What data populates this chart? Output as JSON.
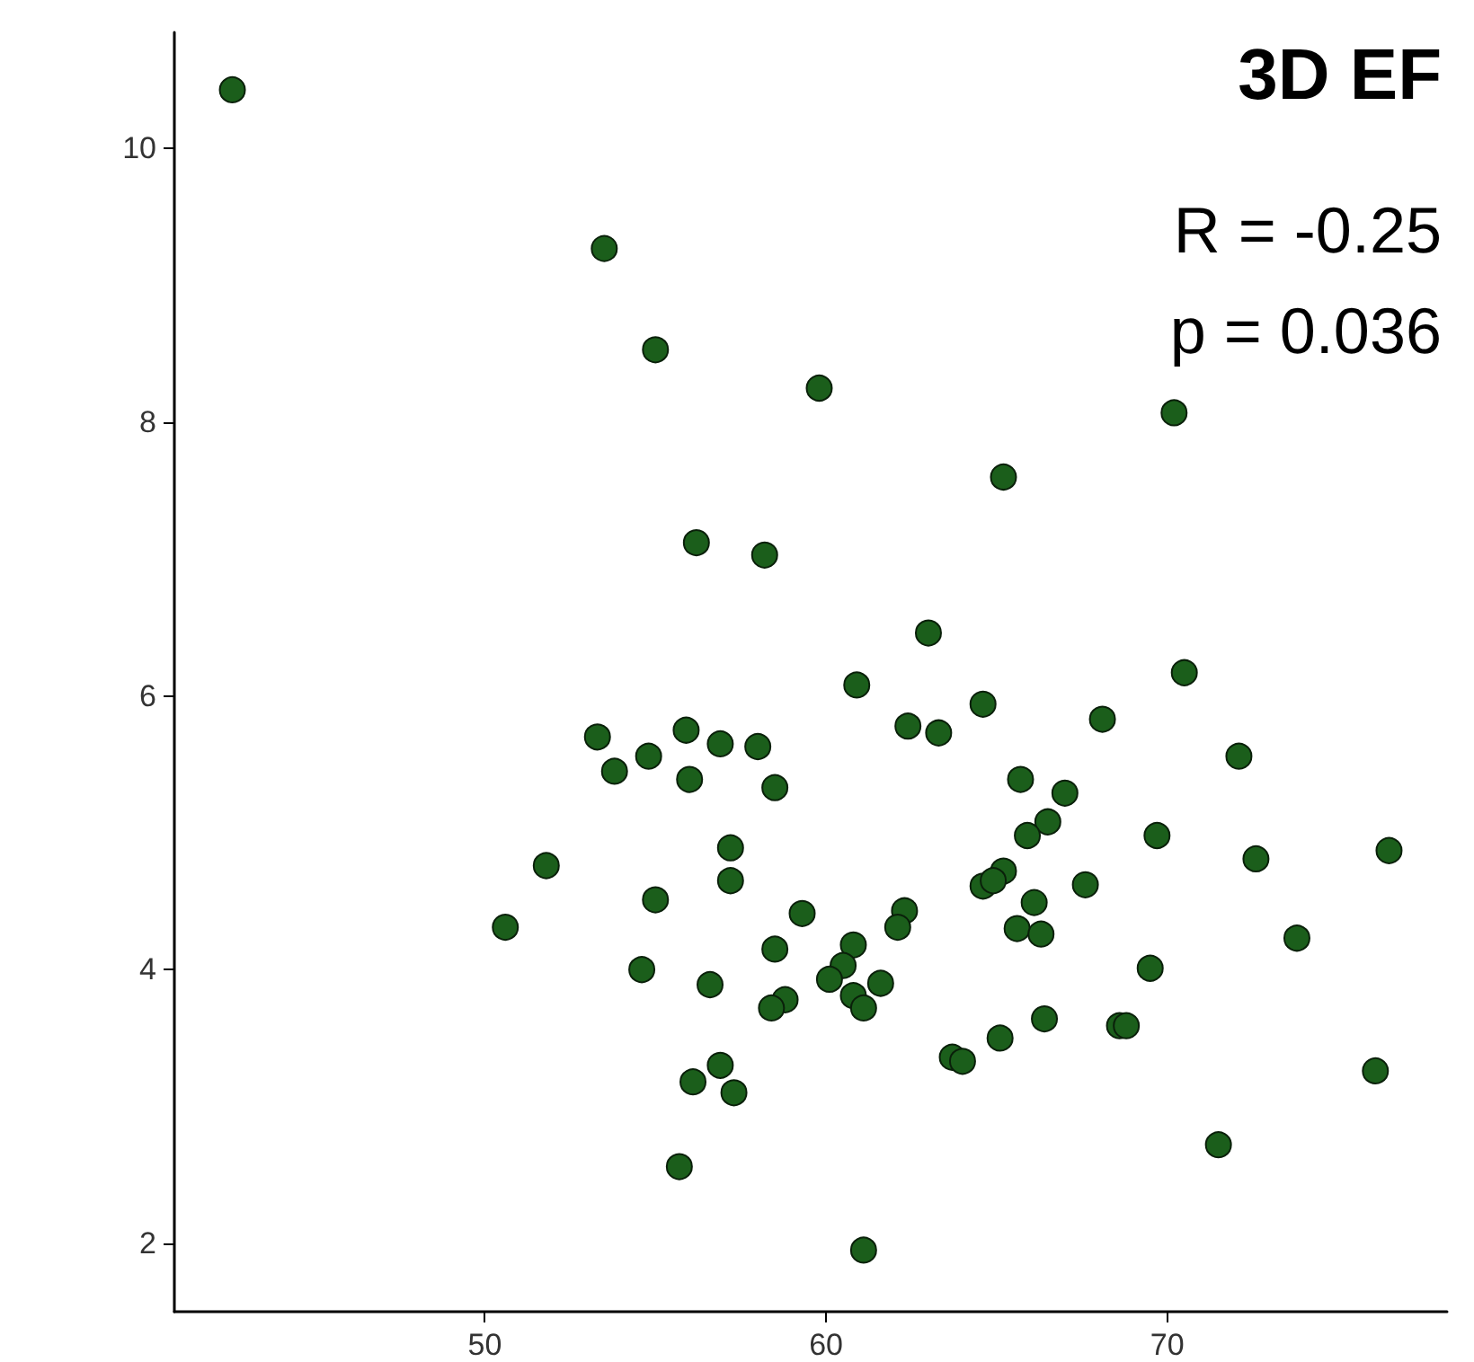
{
  "chart_data": {
    "type": "scatter",
    "title": "3D EF",
    "annotations": [
      "R = -0.25",
      "p = 0.036"
    ],
    "x": [
      42.6,
      53.5,
      55.0,
      59.8,
      70.2,
      65.2,
      56.2,
      58.2,
      63.0,
      60.9,
      70.5,
      53.3,
      53.8,
      54.8,
      55.9,
      56.9,
      58.0,
      56.0,
      58.5,
      62.4,
      63.3,
      64.6,
      68.1,
      72.1,
      65.7,
      67.0,
      66.5,
      65.9,
      69.7,
      76.5,
      57.2,
      51.8,
      57.2,
      65.2,
      64.6,
      64.9,
      67.6,
      72.6,
      55.0,
      59.3,
      62.3,
      62.1,
      66.1,
      65.6,
      66.3,
      73.8,
      50.6,
      58.5,
      60.8,
      60.5,
      54.6,
      69.5,
      60.1,
      56.6,
      61.6,
      58.8,
      58.4,
      60.8,
      61.1,
      66.4,
      68.6,
      68.8,
      65.1,
      63.7,
      64.0,
      56.9,
      56.1,
      57.3,
      76.1,
      71.5,
      55.7,
      61.1
    ],
    "values": [
      10.43,
      9.27,
      8.53,
      8.25,
      8.07,
      7.6,
      7.12,
      7.03,
      6.46,
      6.08,
      6.17,
      5.7,
      5.45,
      5.56,
      5.75,
      5.65,
      5.63,
      5.39,
      5.33,
      5.78,
      5.73,
      5.94,
      5.83,
      5.56,
      5.39,
      5.29,
      5.08,
      4.98,
      4.98,
      4.87,
      4.89,
      4.76,
      4.65,
      4.72,
      4.61,
      4.65,
      4.62,
      4.81,
      4.51,
      4.41,
      4.43,
      4.31,
      4.49,
      4.3,
      4.26,
      4.23,
      4.31,
      4.15,
      4.18,
      4.03,
      4.0,
      4.01,
      3.93,
      3.89,
      3.9,
      3.78,
      3.72,
      3.81,
      3.72,
      3.64,
      3.59,
      3.59,
      3.5,
      3.36,
      3.33,
      3.3,
      3.18,
      3.1,
      3.26,
      2.72,
      2.56,
      1.95
    ],
    "color": "#1b5e1b",
    "marker": "circle",
    "xlim": [
      40.9,
      78.2
    ],
    "xticks": [
      50,
      60,
      70
    ],
    "ylim": [
      1.5,
      10.85
    ],
    "yticks": [
      2,
      4,
      6,
      8,
      10
    ],
    "grid": false
  }
}
